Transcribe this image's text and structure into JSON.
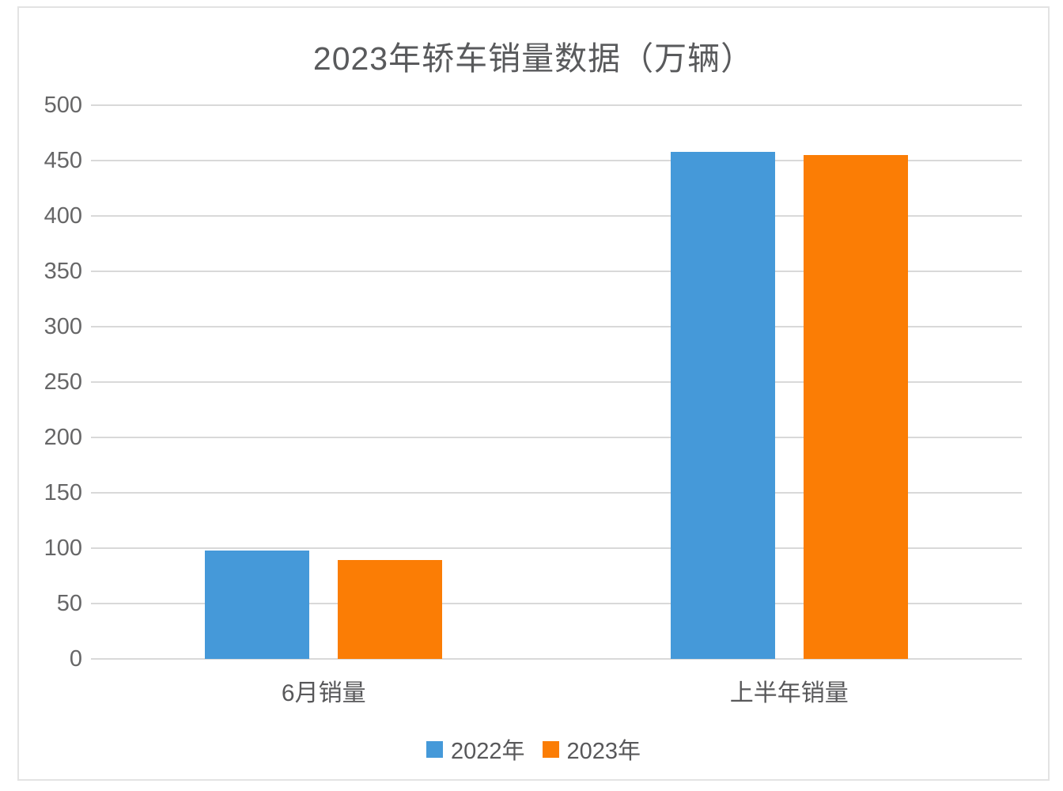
{
  "chart_data": {
    "type": "bar",
    "title": "2023年轿车销量数据（万辆）",
    "categories": [
      "6月销量",
      "上半年销量"
    ],
    "series": [
      {
        "name": "2022年",
        "color": "#4599d9",
        "values": [
          98,
          458
        ]
      },
      {
        "name": "2023年",
        "color": "#fb7d05",
        "values": [
          89,
          455
        ]
      }
    ],
    "xlabel": "",
    "ylabel": "",
    "ylim": [
      0,
      500
    ],
    "ytick_step": 50,
    "grid": true,
    "grid_color": "#d9d9d9",
    "legend_position": "bottom",
    "frame_border_color": "#e3e3e3",
    "title_color": "#595a5c",
    "axis_text_color": "#666667",
    "label_text_color": "#58585a"
  }
}
